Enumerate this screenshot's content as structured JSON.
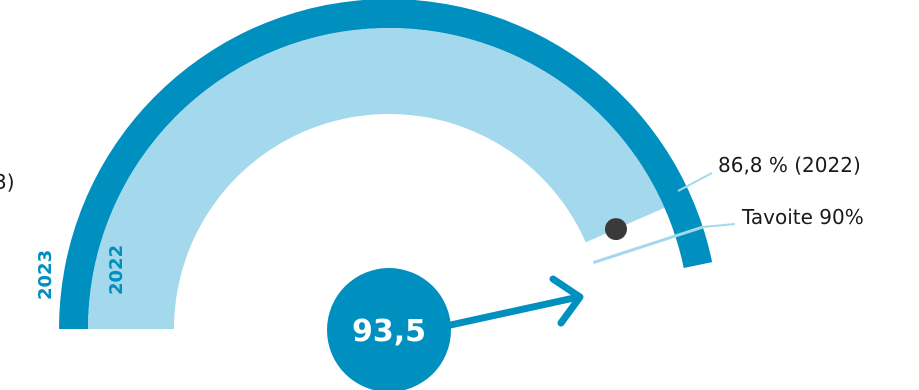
{
  "chart_data": {
    "type": "gauge",
    "min": 0,
    "max": 100,
    "series": [
      {
        "name": "2023",
        "value": 93.5,
        "color": "#0090c0"
      },
      {
        "name": "2022",
        "value": 86.8,
        "color": "#a4d8ec"
      }
    ],
    "center_value_label": "93,5",
    "annotations": [
      {
        "text": "86,8 % (2022)",
        "value": 86.8
      },
      {
        "text": "Tavoite 90%",
        "value": 90
      }
    ],
    "partial_text_left": "3)",
    "colors": {
      "dark": "#0090c0",
      "light": "#a4d8ec",
      "marker": "#3a3a3a",
      "leader": "#a4d8ec"
    }
  }
}
